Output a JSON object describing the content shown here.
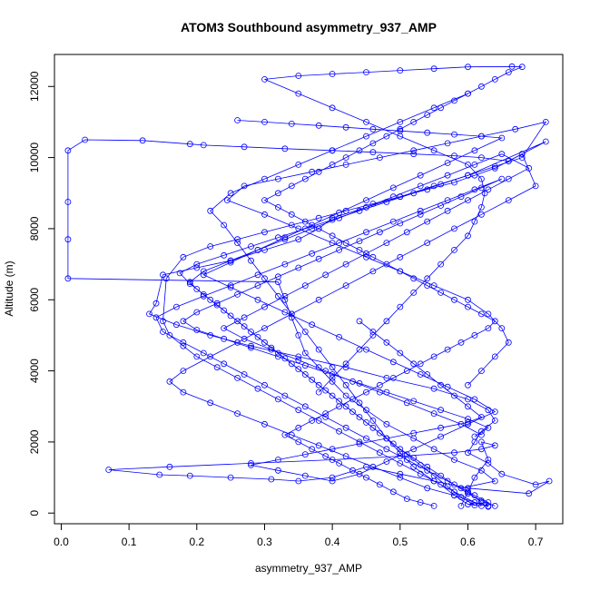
{
  "chart_data": {
    "type": "line",
    "title": "ATOM3 Southbound asymmetry_937_AMP",
    "xlabel": "asymmetry_937_AMP",
    "ylabel": "Altitude (m)",
    "xlim": [
      -0.01,
      0.74
    ],
    "ylim": [
      -300,
      12900
    ],
    "x_ticks": [
      0.0,
      0.1,
      0.2,
      0.3,
      0.4,
      0.5,
      0.6,
      0.7
    ],
    "x_tick_labels": [
      "0.0",
      "0.1",
      "0.2",
      "0.3",
      "0.4",
      "0.5",
      "0.6",
      "0.7"
    ],
    "y_ticks": [
      0,
      2000,
      4000,
      6000,
      8000,
      10000,
      12000
    ],
    "y_tick_labels": [
      "0",
      "2000",
      "4000",
      "6000",
      "8000",
      "10000",
      "12000"
    ],
    "grid": false,
    "line_color": "#0000ff",
    "marker": "open-circle",
    "series": [
      {
        "x": [
          0.62,
          0.6,
          0.63,
          0.61,
          0.59,
          0.64,
          0.62,
          0.58,
          0.55,
          0.52,
          0.48,
          0.45,
          0.42,
          0.4,
          0.38,
          0.36,
          0.35,
          0.34,
          0.33,
          0.32,
          0.01,
          0.01,
          0.01,
          0.01,
          0.035,
          0.12,
          0.19,
          0.21,
          0.27,
          0.33,
          0.4,
          0.46,
          0.52,
          0.58,
          0.62,
          0.66,
          0.715,
          0.6,
          0.55,
          0.5,
          0.45,
          0.4,
          0.38,
          0.35,
          0.3,
          0.25,
          0.2,
          0.15,
          0.14,
          0.13,
          0.17,
          0.22,
          0.28,
          0.35,
          0.42,
          0.48,
          0.55,
          0.6,
          0.63,
          0.64,
          0.62,
          0.61,
          0.6,
          0.63,
          0.65,
          0.7,
          0.72,
          0.69,
          0.6,
          0.55,
          0.5,
          0.45,
          0.4,
          0.35,
          0.31,
          0.25,
          0.19,
          0.145,
          0.07,
          0.16,
          0.28,
          0.4,
          0.5,
          0.58,
          0.62,
          0.64,
          0.62,
          0.63,
          0.61,
          0.6,
          0.59
        ],
        "y": [
          200,
          250,
          300,
          500,
          700,
          900,
          1200,
          1500,
          1800,
          2100,
          2500,
          2900,
          3300,
          3700,
          4100,
          4500,
          5000,
          5500,
          6000,
          6500,
          6600,
          7700,
          8750,
          10200,
          10500,
          10480,
          10380,
          10350,
          10300,
          10250,
          10200,
          10150,
          10100,
          10050,
          10000,
          9900,
          10450,
          9500,
          9200,
          8900,
          8600,
          8300,
          8000,
          7700,
          7400,
          7100,
          6900,
          6700,
          5900,
          5600,
          5300,
          5000,
          4700,
          4400,
          4100,
          3800,
          3500,
          3200,
          2900,
          2600,
          2300,
          2000,
          1700,
          1400,
          1100,
          800,
          900,
          550,
          700,
          900,
          1100,
          1300,
          1000,
          900,
          950,
          1000,
          1050,
          1080,
          1220,
          1300,
          1400,
          1500,
          1600,
          1700,
          1800,
          1900,
          2000,
          1500,
          1000,
          600,
          200
        ]
      },
      {
        "x": [
          0.63,
          0.61,
          0.58,
          0.55,
          0.52,
          0.5,
          0.48,
          0.46,
          0.44,
          0.42,
          0.4,
          0.38,
          0.36,
          0.34,
          0.32,
          0.3,
          0.28,
          0.26,
          0.24,
          0.22,
          0.25,
          0.3,
          0.35,
          0.4,
          0.45,
          0.5,
          0.55,
          0.6,
          0.62,
          0.64,
          0.66,
          0.68,
          0.665,
          0.6,
          0.55,
          0.5,
          0.45,
          0.4,
          0.35,
          0.3,
          0.35,
          0.4,
          0.45,
          0.5,
          0.55,
          0.6,
          0.62,
          0.625,
          0.62,
          0.61,
          0.6,
          0.58,
          0.56,
          0.54,
          0.52,
          0.5,
          0.48,
          0.46,
          0.44,
          0.42,
          0.4,
          0.38
        ],
        "y": [
          180,
          300,
          600,
          900,
          1300,
          1700,
          2100,
          2600,
          3100,
          3600,
          4100,
          4600,
          5100,
          5600,
          6100,
          6600,
          7100,
          7600,
          8100,
          8500,
          9000,
          9400,
          9800,
          10200,
          10600,
          11000,
          11400,
          11800,
          12000,
          12200,
          12400,
          12550,
          12560,
          12550,
          12500,
          12450,
          12400,
          12350,
          12300,
          12200,
          11800,
          11400,
          11000,
          10600,
          10200,
          9800,
          9400,
          9000,
          8600,
          8200,
          7800,
          7400,
          7000,
          6600,
          6200,
          5800,
          5400,
          5000,
          4600,
          4200,
          3800,
          3400
        ]
      },
      {
        "x": [
          0.6,
          0.58,
          0.56,
          0.53,
          0.5,
          0.47,
          0.44,
          0.41,
          0.38,
          0.35,
          0.32,
          0.29,
          0.26,
          0.23,
          0.2,
          0.18,
          0.16,
          0.15,
          0.155,
          0.18,
          0.22,
          0.26,
          0.3,
          0.34,
          0.38,
          0.42,
          0.46,
          0.5,
          0.54,
          0.58,
          0.61,
          0.64,
          0.66,
          0.68,
          0.7,
          0.66,
          0.62,
          0.58,
          0.54,
          0.5,
          0.46,
          0.42,
          0.38,
          0.34,
          0.3,
          0.26,
          0.22,
          0.18,
          0.16,
          0.18,
          0.22,
          0.26,
          0.3,
          0.34,
          0.38,
          0.42,
          0.46,
          0.5,
          0.54,
          0.58,
          0.61,
          0.63
        ],
        "y": [
          250,
          500,
          800,
          1100,
          1400,
          1700,
          2000,
          2300,
          2600,
          2900,
          3200,
          3500,
          3800,
          4100,
          4400,
          4700,
          5000,
          5400,
          6600,
          7200,
          7500,
          7700,
          7900,
          8100,
          8300,
          8500,
          8700,
          8900,
          9100,
          9300,
          9500,
          9700,
          9900,
          10100,
          9200,
          8800,
          8400,
          8000,
          7600,
          7200,
          6800,
          6400,
          6000,
          5600,
          5200,
          4800,
          4400,
          4000,
          3700,
          3400,
          3100,
          2800,
          2500,
          2200,
          1900,
          1600,
          1300,
          1000,
          700,
          500,
          300,
          200
        ]
      },
      {
        "x": [
          0.61,
          0.59,
          0.57,
          0.55,
          0.53,
          0.51,
          0.49,
          0.47,
          0.45,
          0.43,
          0.41,
          0.39,
          0.37,
          0.35,
          0.33,
          0.31,
          0.29,
          0.27,
          0.25,
          0.23,
          0.21,
          0.19,
          0.175,
          0.2,
          0.24,
          0.28,
          0.32,
          0.36,
          0.4,
          0.44,
          0.48,
          0.52,
          0.56,
          0.6,
          0.64,
          0.68,
          0.715,
          0.67,
          0.62,
          0.57,
          0.52,
          0.47,
          0.42,
          0.37,
          0.32,
          0.27,
          0.245,
          0.3,
          0.35,
          0.4,
          0.45,
          0.5,
          0.55,
          0.6,
          0.63,
          0.65,
          0.66,
          0.64,
          0.62,
          0.6
        ],
        "y": [
          220,
          450,
          750,
          1050,
          1350,
          1650,
          1950,
          2250,
          2550,
          2850,
          3150,
          3450,
          3750,
          4050,
          4350,
          4650,
          4950,
          5250,
          5550,
          5850,
          6150,
          6450,
          6750,
          7000,
          7250,
          7500,
          7750,
          8000,
          8250,
          8500,
          8750,
          9000,
          9250,
          9500,
          9750,
          10000,
          11000,
          10800,
          10600,
          10400,
          10200,
          10000,
          9800,
          9600,
          9400,
          9200,
          8800,
          8400,
          8000,
          7600,
          7200,
          6800,
          6400,
          6000,
          5600,
          5200,
          4800,
          4400,
          4000,
          3600
        ]
      },
      {
        "x": [
          0.64,
          0.62,
          0.6,
          0.58,
          0.56,
          0.54,
          0.52,
          0.5,
          0.48,
          0.46,
          0.44,
          0.42,
          0.4,
          0.38,
          0.36,
          0.34,
          0.32,
          0.3,
          0.28,
          0.26,
          0.24,
          0.22,
          0.2,
          0.19,
          0.21,
          0.25,
          0.29,
          0.33,
          0.37,
          0.41,
          0.45,
          0.49,
          0.53,
          0.57,
          0.61,
          0.65,
          0.69,
          0.66,
          0.63,
          0.6,
          0.57,
          0.54,
          0.51,
          0.48,
          0.45,
          0.42,
          0.39,
          0.36,
          0.33,
          0.3,
          0.27,
          0.24,
          0.27,
          0.31,
          0.35,
          0.39,
          0.43,
          0.47,
          0.51,
          0.55,
          0.59,
          0.62
        ],
        "y": [
          200,
          350,
          550,
          800,
          1050,
          1300,
          1550,
          1800,
          2100,
          2400,
          2700,
          3000,
          3300,
          3600,
          3900,
          4200,
          4500,
          4800,
          5100,
          5400,
          5700,
          6000,
          6300,
          6500,
          6800,
          7100,
          7400,
          7700,
          8000,
          8300,
          8600,
          8900,
          9200,
          9500,
          9800,
          10100,
          9700,
          9400,
          9100,
          8800,
          8500,
          8200,
          7900,
          7600,
          7300,
          7000,
          6700,
          6400,
          6100,
          5800,
          5500,
          5200,
          4900,
          4600,
          4300,
          4000,
          3700,
          3400,
          3100,
          2800,
          2500,
          2200
        ]
      },
      {
        "x": [
          0.62,
          0.6,
          0.57,
          0.54,
          0.51,
          0.48,
          0.45,
          0.42,
          0.39,
          0.36,
          0.33,
          0.3,
          0.27,
          0.24,
          0.21,
          0.18,
          0.15,
          0.14,
          0.17,
          0.21,
          0.25,
          0.29,
          0.33,
          0.37,
          0.41,
          0.45,
          0.49,
          0.53,
          0.57,
          0.61,
          0.65,
          0.62,
          0.59,
          0.56,
          0.53,
          0.5,
          0.47,
          0.44,
          0.41,
          0.38,
          0.35,
          0.32,
          0.29,
          0.26,
          0.23,
          0.2,
          0.18,
          0.2,
          0.24,
          0.28,
          0.32,
          0.36,
          0.4,
          0.44,
          0.48,
          0.52,
          0.56,
          0.6,
          0.63,
          0.61
        ],
        "y": [
          300,
          600,
          900,
          1200,
          1500,
          1800,
          2100,
          2400,
          2700,
          3000,
          3300,
          3600,
          3900,
          4200,
          4500,
          4800,
          5100,
          5500,
          5800,
          6100,
          6400,
          6700,
          7000,
          7300,
          7600,
          7900,
          8200,
          8500,
          8800,
          9100,
          9400,
          9150,
          8900,
          8650,
          8400,
          8150,
          7900,
          7650,
          7400,
          7150,
          6900,
          6650,
          6400,
          6150,
          5900,
          5650,
          5400,
          5150,
          4900,
          4650,
          4400,
          4150,
          3900,
          3650,
          3400,
          3150,
          2900,
          2650,
          2400,
          2150
        ]
      },
      {
        "x": [
          0.6,
          0.58,
          0.56,
          0.54,
          0.52,
          0.5,
          0.48,
          0.46,
          0.44,
          0.42,
          0.4,
          0.38,
          0.36,
          0.34,
          0.32,
          0.3,
          0.32,
          0.34,
          0.36,
          0.38,
          0.4,
          0.42,
          0.44,
          0.46,
          0.48,
          0.5,
          0.52,
          0.54,
          0.56,
          0.58,
          0.6,
          0.62,
          0.64,
          0.63,
          0.61,
          0.59,
          0.57,
          0.55,
          0.53,
          0.51,
          0.49,
          0.47,
          0.45,
          0.43,
          0.41,
          0.39,
          0.37,
          0.35,
          0.33,
          0.35,
          0.37,
          0.39,
          0.41,
          0.43,
          0.45,
          0.47,
          0.49,
          0.51,
          0.53,
          0.55
        ],
        "y": [
          11800,
          11600,
          11400,
          11200,
          11000,
          10800,
          10600,
          10400,
          10200,
          10000,
          9800,
          9600,
          9400,
          9200,
          9000,
          8800,
          8600,
          8400,
          8200,
          8000,
          7800,
          7600,
          7400,
          7200,
          7000,
          6800,
          6600,
          6400,
          6200,
          6000,
          5800,
          5600,
          5400,
          5200,
          5000,
          4800,
          4600,
          4400,
          4200,
          4000,
          3800,
          3600,
          3400,
          3200,
          3000,
          2800,
          2600,
          2400,
          2200,
          2000,
          1800,
          1600,
          1400,
          1200,
          1000,
          800,
          600,
          400,
          300,
          200
        ]
      },
      {
        "x": [
          0.26,
          0.3,
          0.34,
          0.38,
          0.42,
          0.46,
          0.5,
          0.54,
          0.58,
          0.62,
          0.65,
          0.61,
          0.57,
          0.53,
          0.49,
          0.45,
          0.41,
          0.37,
          0.33,
          0.29,
          0.25,
          0.21,
          0.25,
          0.29,
          0.33,
          0.37,
          0.41,
          0.45,
          0.49,
          0.53,
          0.57,
          0.61,
          0.64,
          0.6,
          0.56,
          0.52,
          0.48,
          0.44,
          0.4,
          0.36,
          0.32,
          0.28,
          0.32,
          0.36,
          0.4,
          0.44,
          0.48,
          0.52,
          0.56,
          0.6,
          0.62,
          0.6,
          0.58,
          0.56,
          0.54,
          0.52,
          0.5,
          0.48,
          0.46,
          0.44
        ],
        "y": [
          11050,
          11000,
          10950,
          10900,
          10850,
          10800,
          10750,
          10700,
          10650,
          10600,
          10550,
          10200,
          9850,
          9500,
          9150,
          8800,
          8450,
          8100,
          7750,
          7400,
          7050,
          6700,
          6350,
          6000,
          5650,
          5300,
          4950,
          4600,
          4250,
          3900,
          3550,
          3200,
          2850,
          2500,
          2150,
          1800,
          1450,
          1100,
          900,
          1050,
          1200,
          1350,
          1500,
          1650,
          1800,
          1950,
          2100,
          2250,
          2400,
          2550,
          2700,
          3000,
          3300,
          3600,
          3900,
          4200,
          4500,
          4800,
          5100,
          5400
        ]
      }
    ]
  }
}
